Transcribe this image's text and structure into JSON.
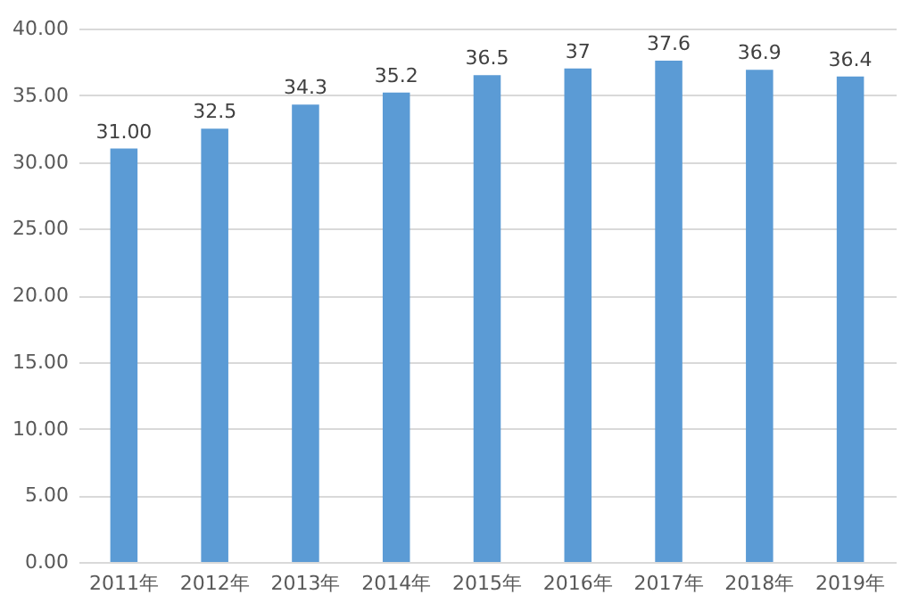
{
  "chart_data": {
    "type": "bar",
    "categories": [
      "2011年",
      "2012年",
      "2013年",
      "2014年",
      "2015年",
      "2016年",
      "2017年",
      "2018年",
      "2019年"
    ],
    "values": [
      31.0,
      32.5,
      34.3,
      35.2,
      36.5,
      37,
      37.6,
      36.9,
      36.4
    ],
    "value_labels": [
      "31.00",
      "32.5",
      "34.3",
      "35.2",
      "36.5",
      "37",
      "37.6",
      "36.9",
      "36.4"
    ],
    "color": "#5b9bd5",
    "ylim": [
      0,
      40
    ],
    "yticks": [
      {
        "value": 0,
        "label": "0.00"
      },
      {
        "value": 5,
        "label": "5.00"
      },
      {
        "value": 10,
        "label": "10.00"
      },
      {
        "value": 15,
        "label": "15.00"
      },
      {
        "value": 20,
        "label": "20.00"
      },
      {
        "value": 25,
        "label": "25.00"
      },
      {
        "value": 30,
        "label": "30.00"
      },
      {
        "value": 35,
        "label": "35.00"
      },
      {
        "value": 40,
        "label": "40.00"
      }
    ],
    "grid": "y"
  }
}
